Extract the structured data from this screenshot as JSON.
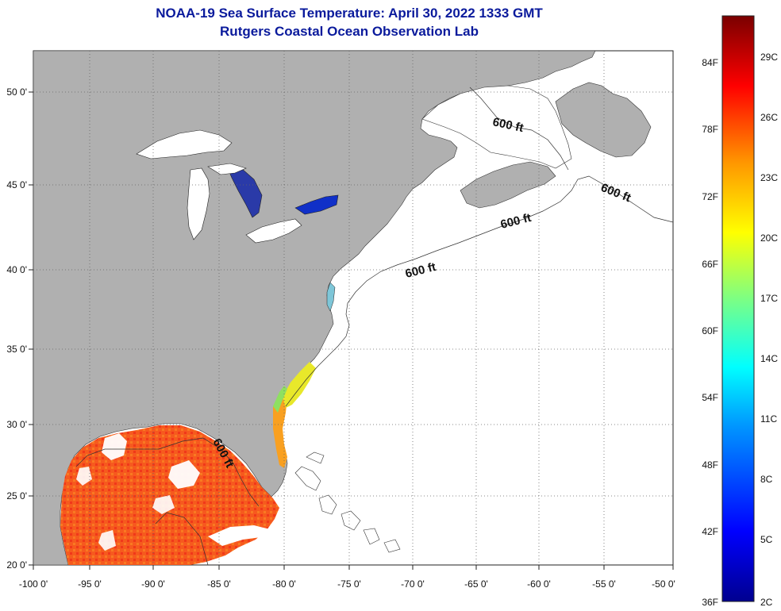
{
  "header": {
    "title": "NOAA-19 Sea Surface Temperature:  April 30, 2022 1333 GMT",
    "subtitle": "Rutgers Coastal Ocean Observation Lab"
  },
  "map": {
    "lon_range": [
      -100,
      -50
    ],
    "lat_range": [
      20,
      52.5
    ],
    "lon_ticks": [
      "-100 0'",
      "-95 0'",
      "-90 0'",
      "-85 0'",
      "-80 0'",
      "-75 0'",
      "-70 0'",
      "-65 0'",
      "-60 0'",
      "-55 0'",
      "-50 0'"
    ],
    "lat_ticks": [
      "20 0'",
      "25 0'",
      "30 0'",
      "35 0'",
      "40 0'",
      "45 0'",
      "50 0'"
    ],
    "isobath_label": "600 ft",
    "colors": {
      "land": "#b0b0b0",
      "water_no_data": "#ffffff",
      "grid": "#666666"
    }
  },
  "colorbar": {
    "fahrenheit_labels": [
      "36F",
      "42F",
      "48F",
      "54F",
      "60F",
      "66F",
      "72F",
      "78F",
      "84F"
    ],
    "celsius_labels": [
      "2C",
      "5C",
      "8C",
      "11C",
      "14C",
      "17C",
      "20C",
      "23C",
      "26C",
      "29C"
    ]
  }
}
